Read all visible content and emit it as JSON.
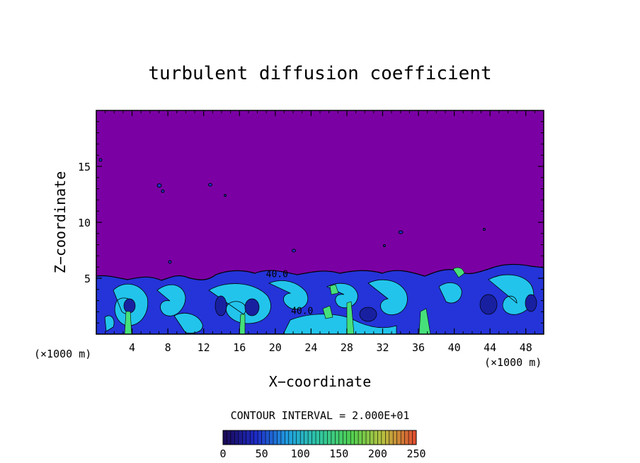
{
  "chart_data": {
    "type": "heatmap",
    "title": "turbulent diffusion coefficient",
    "xlabel": "X−coordinate",
    "ylabel": "Z−coordinate",
    "x_unit_left": "(×1000 m)",
    "x_unit_right": "(×1000 m)",
    "xlim": [
      0,
      50
    ],
    "ylim": [
      0,
      20
    ],
    "x_ticks": [
      4,
      8,
      12,
      16,
      20,
      24,
      28,
      32,
      36,
      40,
      44,
      48
    ],
    "y_ticks": [
      5,
      10,
      15
    ],
    "contour_labels": [
      {
        "text": "40.0",
        "x": 20.2,
        "z": 5.1
      },
      {
        "text": "40.0",
        "x": 23.0,
        "z": 1.8
      }
    ],
    "contour_interval_text": "CONTOUR INTERVAL = 2.000E+01",
    "colorbar": {
      "min": 0,
      "max": 250,
      "ticks": [
        0,
        50,
        100,
        150,
        200,
        250
      ],
      "colors": [
        "#1a0a5a",
        "#1e2cc8",
        "#20a0e0",
        "#30c8a0",
        "#50d050",
        "#b8c040",
        "#e05030"
      ]
    },
    "field_description_colors": {
      "background": "#7b00a4",
      "low": "#2030d0",
      "mid": "#20c8e8",
      "high": "#40e080"
    }
  }
}
